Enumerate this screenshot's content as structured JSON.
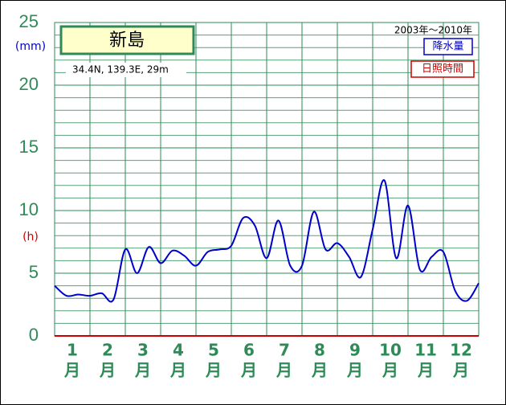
{
  "chart_data": {
    "type": "line",
    "title": "新島",
    "subtitle": "34.4N, 139.3E, 29m",
    "period": "2003年～2010年",
    "y_unit_top": "(mm)",
    "y_unit_bottom": "(h)",
    "legend_labels": [
      {
        "text": "降水量",
        "color": "#0000cc"
      },
      {
        "text": "日照時間",
        "color": "#cc0000"
      }
    ],
    "months": [
      "1",
      "2",
      "3",
      "4",
      "5",
      "6",
      "7",
      "8",
      "9",
      "10",
      "11",
      "12"
    ],
    "month_unit": "月",
    "x": [
      0,
      1,
      2,
      3,
      4,
      5,
      6,
      7,
      8,
      9,
      10,
      11,
      12,
      13,
      14,
      15,
      16,
      17,
      18,
      19,
      20,
      21,
      22,
      23,
      24,
      25,
      26,
      27,
      28,
      29,
      30,
      31,
      32,
      33,
      34,
      35,
      36
    ],
    "xlim": [
      0,
      36
    ],
    "series": [
      {
        "name": "降水量",
        "color": "#0000cc",
        "values": [
          4.0,
          3.2,
          3.3,
          3.2,
          3.4,
          2.9,
          6.9,
          5.0,
          7.1,
          5.8,
          6.8,
          6.4,
          5.6,
          6.7,
          6.9,
          7.2,
          9.4,
          8.8,
          6.2,
          9.2,
          5.6,
          5.6,
          9.9,
          6.9,
          7.4,
          6.3,
          4.7,
          8.5,
          12.4,
          6.2,
          10.4,
          5.3,
          6.3,
          6.7,
          3.6,
          2.8,
          4.2
        ]
      }
    ],
    "ylim": [
      0,
      25
    ],
    "yticks": [
      0,
      5,
      10,
      15,
      20,
      25
    ],
    "grid": true
  }
}
